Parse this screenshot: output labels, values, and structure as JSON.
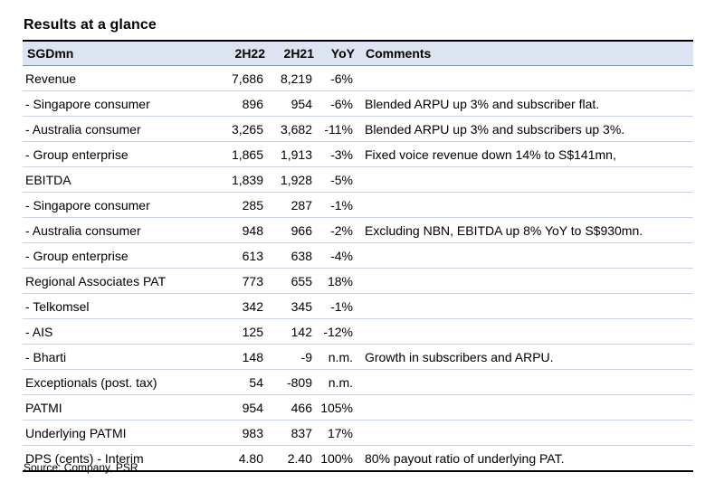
{
  "title": "Results at a glance",
  "header": {
    "label": "SGDmn",
    "a": "2H22",
    "b": "2H21",
    "yoy": "YoY",
    "comment": "Comments"
  },
  "rows": [
    {
      "label": "Revenue",
      "a": "7,686",
      "b": "8,219",
      "yoy": "-6%",
      "comment": ""
    },
    {
      "label": " - Singapore consumer",
      "a": "896",
      "b": "954",
      "yoy": "-6%",
      "comment": "Blended ARPU up 3% and subscriber flat."
    },
    {
      "label": " - Australia consumer",
      "a": "3,265",
      "b": "3,682",
      "yoy": "-11%",
      "comment": "Blended ARPU up 3% and subscribers up 3%."
    },
    {
      "label": " - Group enterprise",
      "a": "1,865",
      "b": "1,913",
      "yoy": "-3%",
      "comment": "Fixed voice revenue down 14% to S$141mn,"
    },
    {
      "label": "EBITDA",
      "a": "1,839",
      "b": "1,928",
      "yoy": "-5%",
      "comment": ""
    },
    {
      "label": " - Singapore consumer",
      "a": "285",
      "b": "287",
      "yoy": "-1%",
      "comment": ""
    },
    {
      "label": " - Australia consumer",
      "a": "948",
      "b": "966",
      "yoy": "-2%",
      "comment": "Excluding NBN, EBITDA up 8% YoY to S$930mn."
    },
    {
      "label": " - Group enterprise",
      "a": "613",
      "b": "638",
      "yoy": "-4%",
      "comment": ""
    },
    {
      "label": "Regional Associates PAT",
      "a": "773",
      "b": "655",
      "yoy": "18%",
      "comment": ""
    },
    {
      "label": " - Telkomsel",
      "a": "342",
      "b": "345",
      "yoy": "-1%",
      "comment": ""
    },
    {
      "label": " - AIS",
      "a": "125",
      "b": "142",
      "yoy": "-12%",
      "comment": ""
    },
    {
      "label": " - Bharti",
      "a": "148",
      "b": "-9",
      "yoy": "n.m.",
      "comment": "Growth in subscribers and ARPU."
    },
    {
      "label": "Exceptionals (post. tax)",
      "a": "54",
      "b": "-809",
      "yoy": "n.m.",
      "comment": ""
    },
    {
      "label": "PATMI",
      "a": "954",
      "b": "466",
      "yoy": "105%",
      "comment": ""
    },
    {
      "label": "Underlying PATMI",
      "a": "983",
      "b": "837",
      "yoy": "17%",
      "comment": ""
    },
    {
      "label": "DPS (cents)  - Interim",
      "a": "4.80",
      "b": "2.40",
      "yoy": "100%",
      "comment": "80% payout ratio of underlying PAT."
    }
  ],
  "source": "Source: Company, PSR"
}
